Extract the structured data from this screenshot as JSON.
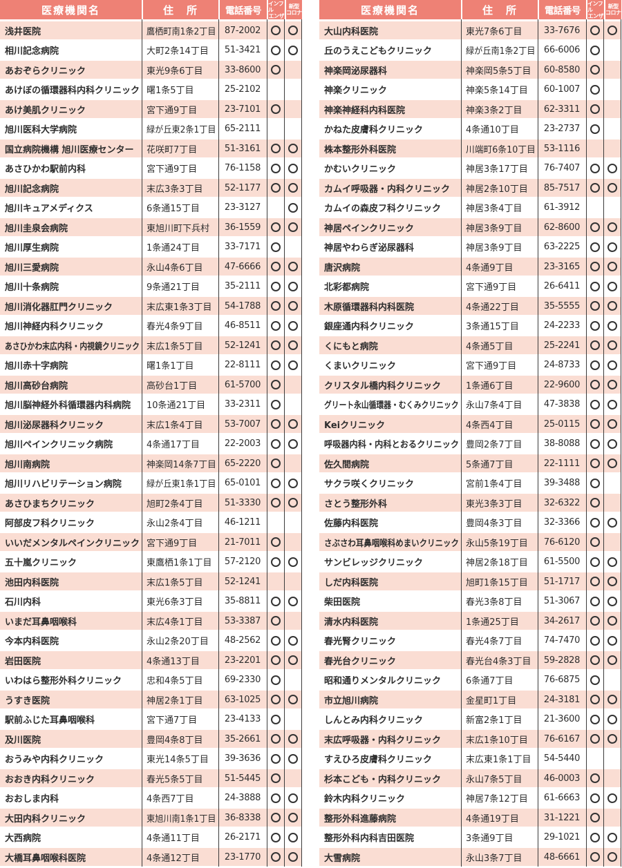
{
  "columns": {
    "name": "医療機関名",
    "address": "住　所",
    "phone": "電話番号",
    "influenza": [
      "インフル",
      "エンザ"
    ],
    "corona": [
      "新型",
      "コロナ"
    ]
  },
  "icons": {
    "availability_mark": "circle-outline"
  },
  "colors": {
    "header_bg": "#ee8175",
    "row_pink": "#faddd3",
    "row_white": "#ffffff",
    "line": "#3a3a3a",
    "text": "#2d2d2d",
    "circle": "#333333"
  },
  "tables": [
    {
      "id": "left",
      "rows": [
        {
          "name": "浅井医院",
          "address": "鷹栖町南1条2丁目",
          "phone": "87-2002",
          "flu": true,
          "corona": true
        },
        {
          "name": "相川記念病院",
          "address": "大町2条14丁目",
          "phone": "51-3421",
          "flu": true,
          "corona": true
        },
        {
          "name": "あおぞらクリニック",
          "address": "東光9条6丁目",
          "phone": "33-8600",
          "flu": true,
          "corona": false
        },
        {
          "name": "あけぼの循環器科内科クリニック",
          "address": "曙1条5丁目",
          "phone": "25-2102",
          "flu": false,
          "corona": false
        },
        {
          "name": "あけ美肌クリニック",
          "address": "宮下通9丁目",
          "phone": "23-7101",
          "flu": true,
          "corona": false
        },
        {
          "name": "旭川医科大学病院",
          "address": "緑が丘東2条1丁目",
          "phone": "65-2111",
          "flu": false,
          "corona": false
        },
        {
          "name": "国立病院機構 旭川医療センター",
          "address": "花咲町7丁目",
          "phone": "51-3161",
          "flu": true,
          "corona": true
        },
        {
          "name": "あさひかわ駅前内科",
          "address": "宮下通9丁目",
          "phone": "76-1158",
          "flu": true,
          "corona": true
        },
        {
          "name": "旭川記念病院",
          "address": "末広3条3丁目",
          "phone": "52-1177",
          "flu": true,
          "corona": true
        },
        {
          "name": "旭川キュアメディクス",
          "address": "6条通15丁目",
          "phone": "23-3127",
          "flu": false,
          "corona": true
        },
        {
          "name": "旭川圭泉会病院",
          "address": "東旭川町下兵村",
          "phone": "36-1559",
          "flu": true,
          "corona": true
        },
        {
          "name": "旭川厚生病院",
          "address": "1条通24丁目",
          "phone": "33-7171",
          "flu": true,
          "corona": false
        },
        {
          "name": "旭川三愛病院",
          "address": "永山4条6丁目",
          "phone": "47-6666",
          "flu": true,
          "corona": true
        },
        {
          "name": "旭川十条病院",
          "address": "9条通21丁目",
          "phone": "35-2111",
          "flu": true,
          "corona": true
        },
        {
          "name": "旭川消化器肛門クリニック",
          "address": "末広東1条3丁目",
          "phone": "54-1788",
          "flu": true,
          "corona": true
        },
        {
          "name": "旭川神経内科クリニック",
          "address": "春光4条9丁目",
          "phone": "46-8511",
          "flu": true,
          "corona": true
        },
        {
          "name": "あさひかわ末広内科・内視鏡クリニック",
          "address": "末広1条5丁目",
          "phone": "52-1241",
          "flu": true,
          "corona": true
        },
        {
          "name": "旭川赤十字病院",
          "address": "曙1条1丁目",
          "phone": "22-8111",
          "flu": true,
          "corona": true
        },
        {
          "name": "旭川高砂台病院",
          "address": "高砂台1丁目",
          "phone": "61-5700",
          "flu": true,
          "corona": false
        },
        {
          "name": "旭川脳神経外科循環器内科病院",
          "address": "10条通21丁目",
          "phone": "33-2311",
          "flu": true,
          "corona": false
        },
        {
          "name": "旭川泌尿器科クリニック",
          "address": "末広1条4丁目",
          "phone": "53-7007",
          "flu": true,
          "corona": true
        },
        {
          "name": "旭川ペインクリニック病院",
          "address": "4条通17丁目",
          "phone": "22-2003",
          "flu": true,
          "corona": true
        },
        {
          "name": "旭川南病院",
          "address": "神楽岡14条7丁目",
          "phone": "65-2220",
          "flu": true,
          "corona": false
        },
        {
          "name": "旭川リハビリテーション病院",
          "address": "緑が丘東1条1丁目",
          "phone": "65-0101",
          "flu": true,
          "corona": true
        },
        {
          "name": "あさひまちクリニック",
          "address": "旭町2条4丁目",
          "phone": "51-3330",
          "flu": true,
          "corona": true
        },
        {
          "name": "阿部皮フ科クリニック",
          "address": "永山2条4丁目",
          "phone": "46-1211",
          "flu": false,
          "corona": false
        },
        {
          "name": "いいだメンタルペインクリニック",
          "address": "宮下通9丁目",
          "phone": "21-7011",
          "flu": true,
          "corona": false
        },
        {
          "name": "五十嵐クリニック",
          "address": "東鷹栖1条1丁目",
          "phone": "57-2120",
          "flu": true,
          "corona": true
        },
        {
          "name": "池田内科医院",
          "address": "末広1条5丁目",
          "phone": "52-1241",
          "flu": false,
          "corona": false
        },
        {
          "name": "石川内科",
          "address": "東光6条3丁目",
          "phone": "35-8811",
          "flu": true,
          "corona": true
        },
        {
          "name": "いまだ耳鼻咽喉科",
          "address": "末広4条1丁目",
          "phone": "53-3387",
          "flu": true,
          "corona": false
        },
        {
          "name": "今本内科医院",
          "address": "永山2条20丁目",
          "phone": "48-2562",
          "flu": true,
          "corona": true
        },
        {
          "name": "岩田医院",
          "address": "4条通13丁目",
          "phone": "23-2201",
          "flu": true,
          "corona": true
        },
        {
          "name": "いわはら整形外科クリニック",
          "address": "忠和4条5丁目",
          "phone": "69-2330",
          "flu": true,
          "corona": false
        },
        {
          "name": "うすき医院",
          "address": "神居2条1丁目",
          "phone": "63-1025",
          "flu": true,
          "corona": true
        },
        {
          "name": "駅前ふじた耳鼻咽喉科",
          "address": "宮下通7丁目",
          "phone": "23-4133",
          "flu": true,
          "corona": false
        },
        {
          "name": "及川医院",
          "address": "豊岡4条8丁目",
          "phone": "35-2661",
          "flu": true,
          "corona": true
        },
        {
          "name": "おうみや内科クリニック",
          "address": "東光14条5丁目",
          "phone": "39-3636",
          "flu": true,
          "corona": true
        },
        {
          "name": "おおき内科クリニック",
          "address": "春光5条5丁目",
          "phone": "51-5445",
          "flu": true,
          "corona": false
        },
        {
          "name": "おおしま内科",
          "address": "4条西7丁目",
          "phone": "24-3888",
          "flu": true,
          "corona": true
        },
        {
          "name": "大田内科クリニック",
          "address": "東旭川南1条1丁目",
          "phone": "36-8338",
          "flu": true,
          "corona": true
        },
        {
          "name": "大西病院",
          "address": "4条通11丁目",
          "phone": "26-2171",
          "flu": true,
          "corona": true
        },
        {
          "name": "大橋耳鼻咽喉科医院",
          "address": "4条通12丁目",
          "phone": "23-1770",
          "flu": true,
          "corona": true
        }
      ]
    },
    {
      "id": "right",
      "rows": [
        {
          "name": "大山内科医院",
          "address": "東光7条6丁目",
          "phone": "33-7676",
          "flu": true,
          "corona": true
        },
        {
          "name": "丘のうえこどもクリニック",
          "address": "緑が丘南1条2丁目",
          "phone": "66-6006",
          "flu": true,
          "corona": false
        },
        {
          "name": "神楽岡泌尿器科",
          "address": "神楽岡5条5丁目",
          "phone": "60-8580",
          "flu": true,
          "corona": false
        },
        {
          "name": "神楽クリニック",
          "address": "神楽5条14丁目",
          "phone": "60-1007",
          "flu": true,
          "corona": false
        },
        {
          "name": "神楽神経科内科医院",
          "address": "神楽3条2丁目",
          "phone": "62-3311",
          "flu": true,
          "corona": false
        },
        {
          "name": "かねた皮膚科クリニック",
          "address": "4条通10丁目",
          "phone": "23-2737",
          "flu": true,
          "corona": false
        },
        {
          "name": "株本整形外科医院",
          "address": "川端町6条10丁目",
          "phone": "53-1116",
          "flu": false,
          "corona": false
        },
        {
          "name": "かむいクリニック",
          "address": "神居3条17丁目",
          "phone": "76-7407",
          "flu": true,
          "corona": true
        },
        {
          "name": "カムイ呼吸器・内科クリニック",
          "address": "神居2条10丁目",
          "phone": "85-7517",
          "flu": true,
          "corona": true
        },
        {
          "name": "カムイの森皮フ科クリニック",
          "address": "神居3条4丁目",
          "phone": "61-3912",
          "flu": false,
          "corona": false
        },
        {
          "name": "神居ペインクリニック",
          "address": "神居3条9丁目",
          "phone": "62-8600",
          "flu": true,
          "corona": true
        },
        {
          "name": "神居やわらぎ泌尿器科",
          "address": "神居3条9丁目",
          "phone": "63-2225",
          "flu": true,
          "corona": true
        },
        {
          "name": "唐沢病院",
          "address": "4条通9丁目",
          "phone": "23-3165",
          "flu": true,
          "corona": true
        },
        {
          "name": "北彩都病院",
          "address": "宮下通9丁目",
          "phone": "26-6411",
          "flu": true,
          "corona": true
        },
        {
          "name": "木原循環器科内科医院",
          "address": "4条通22丁目",
          "phone": "35-5555",
          "flu": true,
          "corona": true
        },
        {
          "name": "銀座通内科クリニック",
          "address": "3条通15丁目",
          "phone": "24-2233",
          "flu": true,
          "corona": true
        },
        {
          "name": "くにもと病院",
          "address": "4条通5丁目",
          "phone": "25-2241",
          "flu": true,
          "corona": true
        },
        {
          "name": "くまいクリニック",
          "address": "宮下通9丁目",
          "phone": "24-8733",
          "flu": true,
          "corona": true
        },
        {
          "name": "クリスタル橋内科クリニック",
          "address": "1条通6丁目",
          "phone": "22-9600",
          "flu": true,
          "corona": true
        },
        {
          "name": "グリート永山循環器・むくみクリニック",
          "address": "永山7条4丁目",
          "phone": "47-3838",
          "flu": true,
          "corona": true
        },
        {
          "name": "Keiクリニック",
          "address": "4条西4丁目",
          "phone": "25-0115",
          "flu": true,
          "corona": true
        },
        {
          "name": "呼吸器内科・内科とおるクリニック",
          "address": "豊岡2条7丁目",
          "phone": "38-8088",
          "flu": true,
          "corona": true
        },
        {
          "name": "佐久間病院",
          "address": "5条通7丁目",
          "phone": "22-1111",
          "flu": true,
          "corona": true
        },
        {
          "name": "サクラ咲くクリニック",
          "address": "宮前1条4丁目",
          "phone": "39-3488",
          "flu": true,
          "corona": false
        },
        {
          "name": "さとう整形外科",
          "address": "東光3条3丁目",
          "phone": "32-6322",
          "flu": true,
          "corona": false
        },
        {
          "name": "佐藤内科医院",
          "address": "豊岡4条3丁目",
          "phone": "32-3366",
          "flu": true,
          "corona": true
        },
        {
          "name": "さぶさわ耳鼻咽喉科めまいクリニック",
          "address": "永山5条19丁目",
          "phone": "76-6120",
          "flu": true,
          "corona": false
        },
        {
          "name": "サンビレッジクリニック",
          "address": "神居2条18丁目",
          "phone": "61-5500",
          "flu": true,
          "corona": true
        },
        {
          "name": "しだ内科医院",
          "address": "旭町1条15丁目",
          "phone": "51-1717",
          "flu": true,
          "corona": true
        },
        {
          "name": "柴田医院",
          "address": "春光3条8丁目",
          "phone": "51-3067",
          "flu": true,
          "corona": true
        },
        {
          "name": "清水内科医院",
          "address": "1条通25丁目",
          "phone": "34-2617",
          "flu": true,
          "corona": true
        },
        {
          "name": "春光腎クリニック",
          "address": "春光4条7丁目",
          "phone": "74-7470",
          "flu": true,
          "corona": true
        },
        {
          "name": "春光台クリニック",
          "address": "春光台4条3丁目",
          "phone": "59-2828",
          "flu": true,
          "corona": true
        },
        {
          "name": "昭和通りメンタルクリニック",
          "address": "6条通7丁目",
          "phone": "76-6875",
          "flu": true,
          "corona": false
        },
        {
          "name": "市立旭川病院",
          "address": "金星町1丁目",
          "phone": "24-3181",
          "flu": true,
          "corona": true
        },
        {
          "name": "しんとみ内科クリニック",
          "address": "新富2条1丁目",
          "phone": "21-3600",
          "flu": true,
          "corona": true
        },
        {
          "name": "末広呼吸器・内科クリニック",
          "address": "末広1条10丁目",
          "phone": "76-6167",
          "flu": true,
          "corona": true
        },
        {
          "name": "すえひろ皮膚科クリニック",
          "address": "末広東1条1丁目",
          "phone": "54-5440",
          "flu": false,
          "corona": false
        },
        {
          "name": "杉本こども・内科クリニック",
          "address": "永山7条5丁目",
          "phone": "46-0003",
          "flu": true,
          "corona": false
        },
        {
          "name": "鈴木内科クリニック",
          "address": "神居7条12丁目",
          "phone": "61-6663",
          "flu": true,
          "corona": true
        },
        {
          "name": "整形外科進藤病院",
          "address": "4条通19丁目",
          "phone": "31-1221",
          "flu": true,
          "corona": false
        },
        {
          "name": "整形外科内科吉田医院",
          "address": "3条通9丁目",
          "phone": "29-1021",
          "flu": true,
          "corona": true
        },
        {
          "name": "大雪病院",
          "address": "永山3条7丁目",
          "phone": "48-6661",
          "flu": true,
          "corona": true
        }
      ]
    }
  ]
}
